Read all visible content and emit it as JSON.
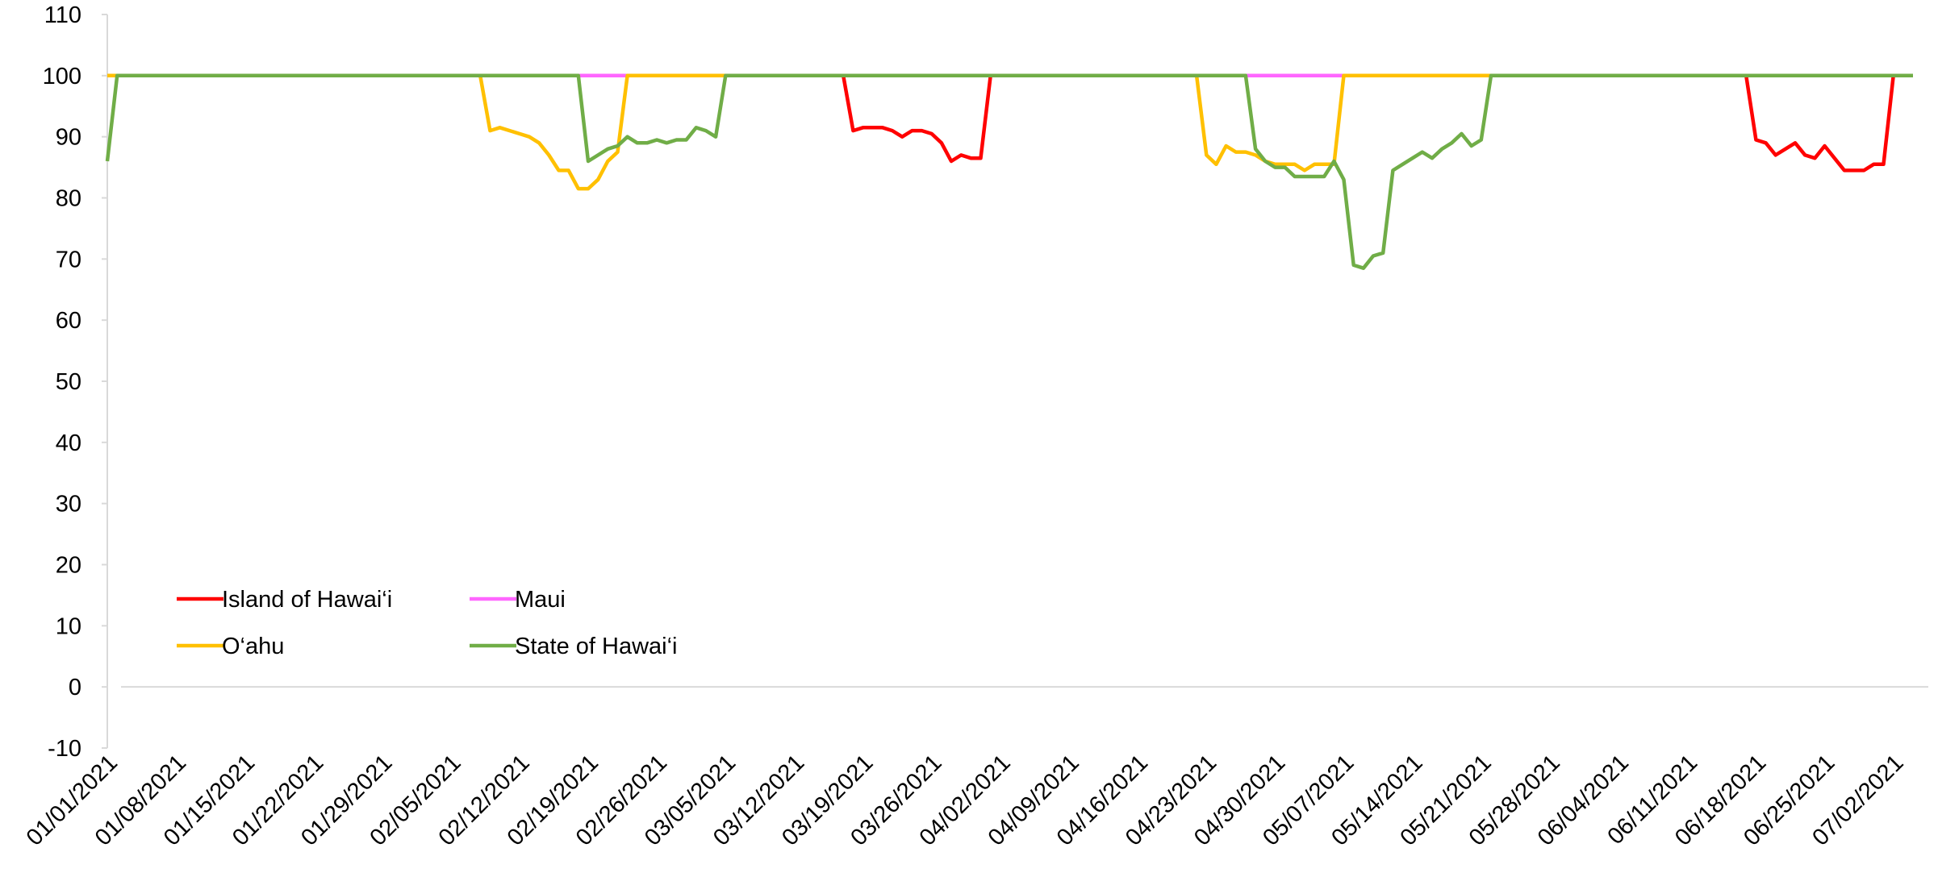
{
  "chart_data": {
    "type": "line",
    "categories": [
      "01/01/2021",
      null,
      null,
      null,
      null,
      null,
      null,
      "01/08/2021",
      null,
      null,
      null,
      null,
      null,
      null,
      "01/15/2021",
      null,
      null,
      null,
      null,
      null,
      null,
      "01/22/2021",
      null,
      null,
      null,
      null,
      null,
      null,
      "01/29/2021",
      null,
      null,
      null,
      null,
      null,
      null,
      "02/05/2021",
      null,
      null,
      null,
      null,
      null,
      null,
      "02/12/2021",
      null,
      null,
      null,
      null,
      null,
      null,
      "02/19/2021",
      null,
      null,
      null,
      null,
      null,
      null,
      "02/26/2021",
      null,
      null,
      null,
      null,
      null,
      null,
      "03/05/2021",
      null,
      null,
      null,
      null,
      null,
      null,
      "03/12/2021",
      null,
      null,
      null,
      null,
      null,
      null,
      "03/19/2021",
      null,
      null,
      null,
      null,
      null,
      null,
      "03/26/2021",
      null,
      null,
      null,
      null,
      null,
      null,
      "04/02/2021",
      null,
      null,
      null,
      null,
      null,
      null,
      "04/09/2021",
      null,
      null,
      null,
      null,
      null,
      null,
      "04/16/2021",
      null,
      null,
      null,
      null,
      null,
      null,
      "04/23/2021",
      null,
      null,
      null,
      null,
      null,
      null,
      "04/30/2021",
      null,
      null,
      null,
      null,
      null,
      null,
      "05/07/2021",
      null,
      null,
      null,
      null,
      null,
      null,
      "05/14/2021",
      null,
      null,
      null,
      null,
      null,
      null,
      "05/21/2021",
      null,
      null,
      null,
      null,
      null,
      null,
      "05/28/2021",
      null,
      null,
      null,
      null,
      null,
      null,
      "06/04/2021",
      null,
      null,
      null,
      null,
      null,
      null,
      "06/11/2021",
      null,
      null,
      null,
      null,
      null,
      null,
      "06/18/2021",
      null,
      null,
      null,
      null,
      null,
      null,
      "06/25/2021",
      null,
      null,
      null,
      null,
      null,
      null,
      "07/02/2021",
      null,
      null
    ],
    "series": [
      {
        "name": "Island of Hawai‘i",
        "color": "#ff0000",
        "values": [
          100,
          100,
          100,
          100,
          100,
          100,
          100,
          100,
          100,
          100,
          100,
          100,
          100,
          100,
          100,
          100,
          100,
          100,
          100,
          100,
          100,
          100,
          100,
          100,
          100,
          100,
          100,
          100,
          100,
          100,
          100,
          100,
          100,
          100,
          100,
          100,
          100,
          100,
          100,
          100,
          100,
          100,
          100,
          100,
          100,
          100,
          100,
          100,
          100,
          100,
          100,
          100,
          100,
          100,
          100,
          100,
          100,
          100,
          100,
          100,
          100,
          100,
          100,
          100,
          100,
          100,
          100,
          100,
          100,
          100,
          100,
          100,
          100,
          100,
          100,
          100,
          91,
          91.5,
          91.5,
          91.5,
          91,
          90,
          91,
          91,
          90.5,
          89,
          86,
          87,
          86.5,
          86.5,
          100,
          100,
          100,
          100,
          100,
          100,
          100,
          100,
          100,
          100,
          100,
          100,
          100,
          100,
          100,
          100,
          100,
          100,
          100,
          100,
          100,
          100,
          100,
          100,
          100,
          100,
          100,
          100,
          100,
          100,
          100,
          100,
          100,
          100,
          100,
          100,
          100,
          100,
          100,
          100,
          100,
          100,
          100,
          100,
          100,
          100,
          100,
          100,
          100,
          100,
          100,
          100,
          100,
          100,
          100,
          100,
          100,
          100,
          100,
          100,
          100,
          100,
          100,
          100,
          100,
          100,
          100,
          100,
          100,
          100,
          100,
          100,
          100,
          100,
          100,
          100,
          100,
          100,
          89.5,
          89,
          87,
          88,
          89,
          87,
          86.5,
          88.5,
          86.5,
          84.5,
          84.5,
          84.5,
          85.5,
          85.5,
          100,
          100,
          100
        ]
      },
      {
        "name": "Maui",
        "color": "#ff66ff",
        "values": [
          100,
          100,
          100,
          100,
          100,
          100,
          100,
          100,
          100,
          100,
          100,
          100,
          100,
          100,
          100,
          100,
          100,
          100,
          100,
          100,
          100,
          100,
          100,
          100,
          100,
          100,
          100,
          100,
          100,
          100,
          100,
          100,
          100,
          100,
          100,
          100,
          100,
          100,
          100,
          100,
          100,
          100,
          100,
          100,
          100,
          100,
          100,
          100,
          100,
          100,
          100,
          100,
          100,
          100,
          100,
          100,
          100,
          100,
          100,
          100,
          100,
          100,
          100,
          100,
          100,
          100,
          100,
          100,
          100,
          100,
          100,
          100,
          100,
          100,
          100,
          100,
          100,
          100,
          100,
          100,
          100,
          100,
          100,
          100,
          100,
          100,
          100,
          100,
          100,
          100,
          100,
          100,
          100,
          100,
          100,
          100,
          100,
          100,
          100,
          100,
          100,
          100,
          100,
          100,
          100,
          100,
          100,
          100,
          100,
          100,
          100,
          100,
          100,
          100,
          100,
          100,
          100,
          100,
          100,
          100,
          100,
          100,
          100,
          100,
          100,
          100,
          100,
          100,
          100,
          100,
          100,
          100,
          100,
          100,
          100,
          100,
          100,
          100,
          100,
          100,
          100,
          100,
          100,
          100,
          100,
          100,
          100,
          100,
          100,
          100,
          100,
          100,
          100,
          100,
          100,
          100,
          100,
          100,
          100,
          100,
          100,
          100,
          100,
          100,
          100,
          100,
          100,
          100,
          100,
          100,
          100,
          100,
          100,
          100,
          100,
          100,
          100,
          100,
          100,
          100,
          100,
          100,
          100,
          100,
          100
        ]
      },
      {
        "name": "O‘ahu",
        "color": "#ffc000",
        "values": [
          100,
          100,
          100,
          100,
          100,
          100,
          100,
          100,
          100,
          100,
          100,
          100,
          100,
          100,
          100,
          100,
          100,
          100,
          100,
          100,
          100,
          100,
          100,
          100,
          100,
          100,
          100,
          100,
          100,
          100,
          100,
          100,
          100,
          100,
          100,
          100,
          100,
          100,
          100,
          91,
          91.5,
          91,
          90.5,
          90,
          89,
          87,
          84.5,
          84.5,
          81.5,
          81.5,
          83,
          86,
          87.5,
          100,
          100,
          100,
          100,
          100,
          100,
          100,
          100,
          100,
          100,
          100,
          100,
          100,
          100,
          100,
          100,
          100,
          100,
          100,
          100,
          100,
          100,
          100,
          100,
          100,
          100,
          100,
          100,
          100,
          100,
          100,
          100,
          100,
          100,
          100,
          100,
          100,
          100,
          100,
          100,
          100,
          100,
          100,
          100,
          100,
          100,
          100,
          100,
          100,
          100,
          100,
          100,
          100,
          100,
          100,
          100,
          100,
          100,
          100,
          87,
          85.5,
          88.5,
          87.5,
          87.5,
          87,
          86,
          85.5,
          85.5,
          85.5,
          84.5,
          85.5,
          85.5,
          85.5,
          100,
          100,
          100,
          100,
          100,
          100,
          100,
          100,
          100,
          100,
          100,
          100,
          100,
          100,
          100,
          100,
          100,
          100,
          100,
          100,
          100,
          100,
          100,
          100,
          100,
          100,
          100,
          100,
          100,
          100,
          100,
          100,
          100,
          100,
          100,
          100,
          100,
          100,
          100,
          100,
          100,
          100,
          100,
          100,
          100,
          100,
          100,
          100,
          100,
          100,
          100,
          100,
          100,
          100,
          100,
          100,
          100,
          100,
          100
        ]
      },
      {
        "name": "State of Hawai‘i",
        "color": "#70ad47",
        "values": [
          86,
          100,
          100,
          100,
          100,
          100,
          100,
          100,
          100,
          100,
          100,
          100,
          100,
          100,
          100,
          100,
          100,
          100,
          100,
          100,
          100,
          100,
          100,
          100,
          100,
          100,
          100,
          100,
          100,
          100,
          100,
          100,
          100,
          100,
          100,
          100,
          100,
          100,
          100,
          100,
          100,
          100,
          100,
          100,
          100,
          100,
          100,
          100,
          100,
          86,
          87,
          88,
          88.5,
          90,
          89,
          89,
          89.5,
          89,
          89.5,
          89.5,
          91.5,
          91,
          90,
          100,
          100,
          100,
          100,
          100,
          100,
          100,
          100,
          100,
          100,
          100,
          100,
          100,
          100,
          100,
          100,
          100,
          100,
          100,
          100,
          100,
          100,
          100,
          100,
          100,
          100,
          100,
          100,
          100,
          100,
          100,
          100,
          100,
          100,
          100,
          100,
          100,
          100,
          100,
          100,
          100,
          100,
          100,
          100,
          100,
          100,
          100,
          100,
          100,
          100,
          100,
          100,
          100,
          100,
          88,
          86,
          85,
          85,
          83.5,
          83.5,
          83.5,
          83.5,
          86,
          83,
          69,
          68.5,
          70.5,
          71,
          84.5,
          85.5,
          86.5,
          87.5,
          86.5,
          88,
          89,
          90.5,
          88.5,
          89.5,
          100,
          100,
          100,
          100,
          100,
          100,
          100,
          100,
          100,
          100,
          100,
          100,
          100,
          100,
          100,
          100,
          100,
          100,
          100,
          100,
          100,
          100,
          100,
          100,
          100,
          100,
          100,
          100,
          100,
          100,
          100,
          100,
          100,
          100,
          100,
          100,
          100,
          100,
          100,
          100,
          100,
          100,
          100,
          100
        ]
      }
    ],
    "ylim": [
      -10,
      110
    ],
    "yticks": [
      -10,
      0,
      10,
      20,
      30,
      40,
      50,
      60,
      70,
      80,
      90,
      100,
      110
    ],
    "grid": false,
    "legend": "lower-left"
  }
}
